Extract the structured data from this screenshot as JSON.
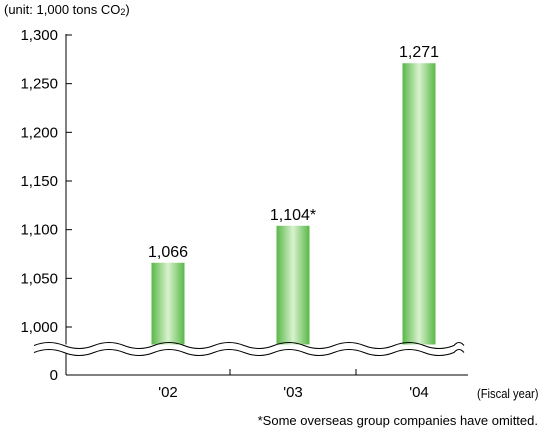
{
  "chart_data": {
    "type": "bar",
    "unit_label_prefix": "(unit: 1,000 tons CO",
    "unit_label_sub": "2",
    "unit_label_suffix": ")",
    "categories": [
      "'02",
      "'03",
      "'04"
    ],
    "values": [
      1066,
      1104,
      1271
    ],
    "value_labels": [
      "1,066",
      "1,104*",
      "1,271"
    ],
    "xlabel": "(Fiscal year)",
    "ylim": [
      1000,
      1300
    ],
    "y_axis_break": true,
    "y_ticks": [
      0,
      1000,
      1050,
      1100,
      1150,
      1200,
      1250,
      1300
    ],
    "y_tick_labels": [
      "0",
      "1,000",
      "1,050",
      "1,100",
      "1,150",
      "1,200",
      "1,250",
      "1,300"
    ],
    "bar_color": "#7ccf6a",
    "grid": false,
    "footnote": "*Some overseas group companies have omitted."
  }
}
